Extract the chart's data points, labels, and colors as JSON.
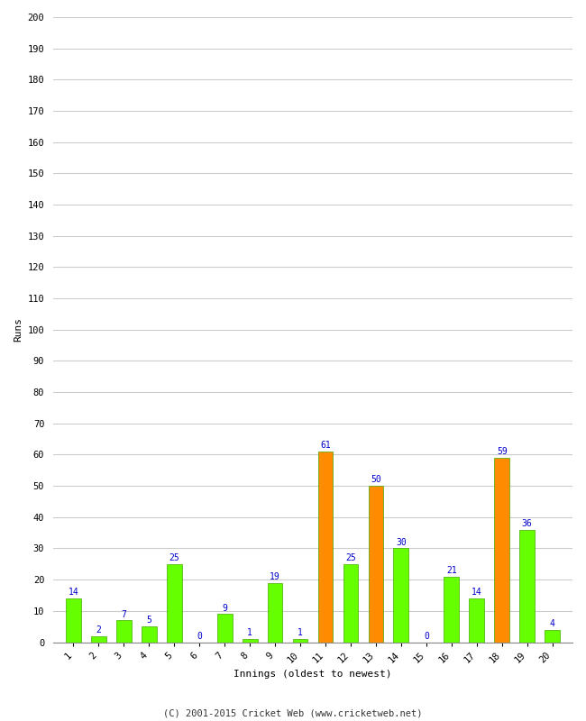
{
  "innings": [
    1,
    2,
    3,
    4,
    5,
    6,
    7,
    8,
    9,
    10,
    11,
    12,
    13,
    14,
    15,
    16,
    17,
    18,
    19,
    20
  ],
  "values": [
    14,
    2,
    7,
    5,
    25,
    0,
    9,
    1,
    19,
    1,
    61,
    25,
    50,
    30,
    0,
    21,
    14,
    59,
    36,
    4
  ],
  "colors": [
    "#66ff00",
    "#66ff00",
    "#66ff00",
    "#66ff00",
    "#66ff00",
    "#66ff00",
    "#66ff00",
    "#66ff00",
    "#66ff00",
    "#66ff00",
    "#ff8c00",
    "#66ff00",
    "#ff8c00",
    "#66ff00",
    "#66ff00",
    "#66ff00",
    "#66ff00",
    "#ff8c00",
    "#66ff00",
    "#66ff00"
  ],
  "xlabel": "Innings (oldest to newest)",
  "ylabel": "Runs",
  "ylim": [
    0,
    200
  ],
  "yticks": [
    0,
    10,
    20,
    30,
    40,
    50,
    60,
    70,
    80,
    90,
    100,
    110,
    120,
    130,
    140,
    150,
    160,
    170,
    180,
    190,
    200
  ],
  "label_color": "#0000cc",
  "footer": "(C) 2001-2015 Cricket Web (www.cricketweb.net)",
  "bar_edge_color": "#44aa00",
  "background_color": "#ffffff",
  "grid_color": "#cccccc"
}
